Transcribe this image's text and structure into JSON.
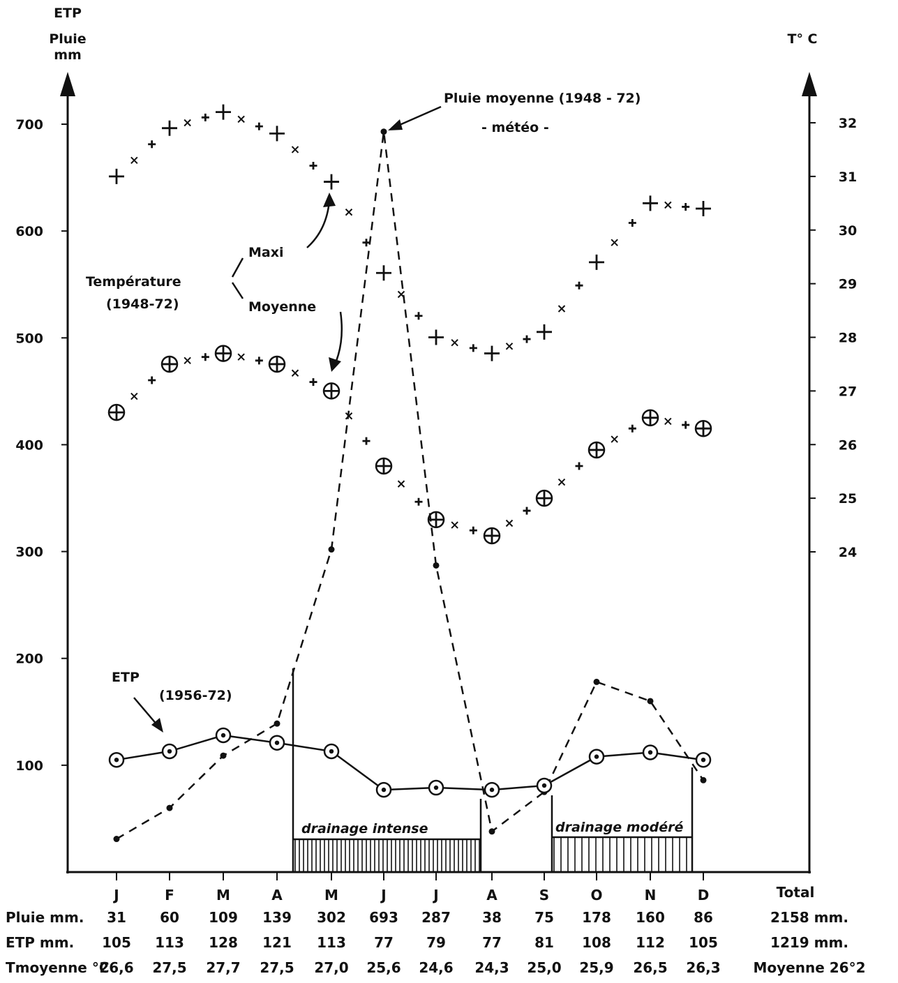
{
  "chart_data": {
    "type": "line",
    "axes": {
      "left_label": [
        "ETP",
        "Pluie",
        "mm"
      ],
      "right_label": "T° C",
      "left_ticks": [
        "100",
        "200",
        "300",
        "400",
        "500",
        "600",
        "700"
      ],
      "left_values": [
        100,
        200,
        300,
        400,
        500,
        600,
        700
      ],
      "right_ticks": [
        "24",
        "25",
        "26",
        "27",
        "28",
        "29",
        "30",
        "31",
        "32"
      ],
      "right_values": [
        24,
        25,
        26,
        27,
        28,
        29,
        30,
        31,
        32
      ],
      "ylim_left": [
        0,
        700
      ],
      "ylim_right": [
        24,
        32
      ]
    },
    "categories": [
      "J",
      "F",
      "M",
      "A",
      "M",
      "J",
      "J",
      "A",
      "S",
      "O",
      "N",
      "D"
    ],
    "series": [
      {
        "name": "Pluie moyenne (1948 - 72)",
        "axis": "left",
        "values": [
          31,
          60,
          109,
          139,
          302,
          693,
          287,
          38,
          75,
          178,
          160,
          86
        ]
      },
      {
        "name": "ETP (1956-72)",
        "axis": "left",
        "values": [
          105,
          113,
          128,
          121,
          113,
          77,
          79,
          77,
          81,
          108,
          112,
          105
        ]
      },
      {
        "name": "Maxi",
        "axis": "right",
        "values": [
          31.0,
          31.9,
          32.2,
          31.8,
          30.9,
          29.2,
          28.0,
          27.7,
          28.1,
          29.4,
          30.5,
          30.4
        ]
      },
      {
        "name": "Moyenne",
        "axis": "right",
        "values": [
          26.6,
          27.5,
          27.7,
          27.5,
          27.0,
          25.6,
          24.6,
          24.3,
          25.0,
          25.9,
          26.5,
          26.3
        ]
      }
    ],
    "annotations": {
      "rain": [
        "Pluie moyenne (1948 - 72)",
        "- météo -"
      ],
      "temperature": [
        "Température",
        "(1948-72)"
      ],
      "maxi": "Maxi",
      "moyenne": "Moyenne",
      "etp": [
        "ETP",
        "(1956-72)"
      ],
      "drainage_intense": "drainage intense",
      "drainage_modere": "drainage modéré"
    },
    "table": {
      "total_header": "Total",
      "rows": [
        {
          "label": "Pluie mm.",
          "values": [
            "31",
            "60",
            "109",
            "139",
            "302",
            "693",
            "287",
            "38",
            "75",
            "178",
            "160",
            "86"
          ],
          "total": "2158 mm."
        },
        {
          "label": "ETP mm.",
          "values": [
            "105",
            "113",
            "128",
            "121",
            "113",
            "77",
            "79",
            "77",
            "81",
            "108",
            "112",
            "105"
          ],
          "total": "1219 mm."
        },
        {
          "label": "Tmoyenne °C",
          "values": [
            "26,6",
            "27,5",
            "27,7",
            "27,5",
            "27,0",
            "25,6",
            "24,6",
            "24,3",
            "25,0",
            "25,9",
            "26,5",
            "26,3"
          ],
          "total": "Moyenne 26°2"
        }
      ]
    }
  }
}
